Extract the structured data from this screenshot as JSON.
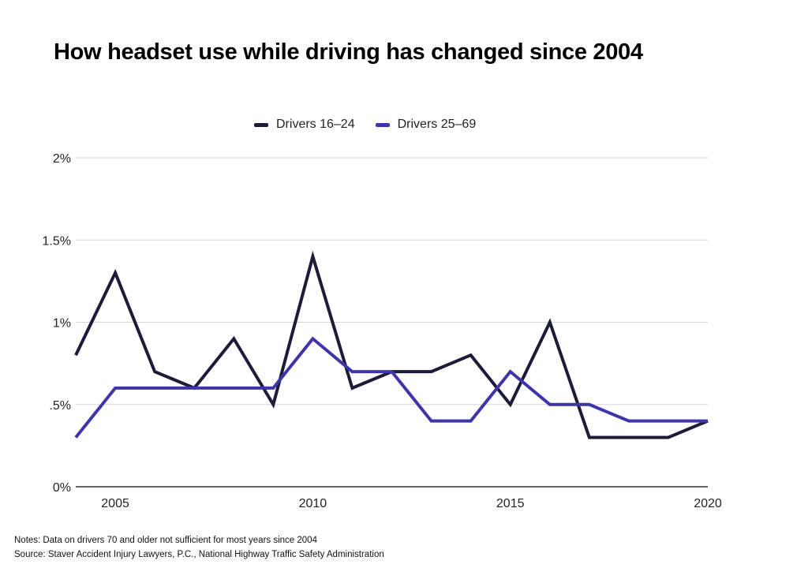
{
  "chart_data": {
    "type": "line",
    "title": "How headset use while driving has changed since 2004",
    "x": [
      2004,
      2005,
      2006,
      2007,
      2008,
      2009,
      2010,
      2011,
      2012,
      2013,
      2014,
      2015,
      2016,
      2017,
      2018,
      2019,
      2020
    ],
    "series": [
      {
        "name": "Drivers 16–24",
        "color": "#1c1b3a",
        "values": [
          0.8,
          1.3,
          0.7,
          0.6,
          0.9,
          0.5,
          1.4,
          0.6,
          0.7,
          0.7,
          0.8,
          0.5,
          1.0,
          0.3,
          0.3,
          0.3,
          0.4
        ]
      },
      {
        "name": "Drivers 25–69",
        "color": "#3d35a8",
        "values": [
          0.3,
          0.6,
          0.6,
          0.6,
          0.6,
          0.6,
          0.9,
          0.7,
          0.7,
          0.4,
          0.4,
          0.7,
          0.5,
          0.5,
          0.4,
          0.4,
          0.4
        ]
      }
    ],
    "ylim": [
      0,
      2
    ],
    "xlim": [
      2004,
      2020
    ],
    "y_ticks": [
      {
        "value": 0,
        "label": "0%"
      },
      {
        "value": 0.5,
        "label": ".5%"
      },
      {
        "value": 1,
        "label": "1%"
      },
      {
        "value": 1.5,
        "label": "1.5%"
      },
      {
        "value": 2,
        "label": "2%"
      }
    ],
    "x_ticks": [
      {
        "value": 2005,
        "label": "2005"
      },
      {
        "value": 2010,
        "label": "2010"
      },
      {
        "value": 2015,
        "label": "2015"
      },
      {
        "value": 2020,
        "label": "2020"
      }
    ],
    "legend_position": "top-center",
    "grid": true
  },
  "notes": {
    "line1": "Notes: Data on drivers 70 and older not sufficient for most years since 2004",
    "line2": "Source: Staver Accident Injury Lawyers, P.C., National Highway Traffic Safety Administration"
  }
}
